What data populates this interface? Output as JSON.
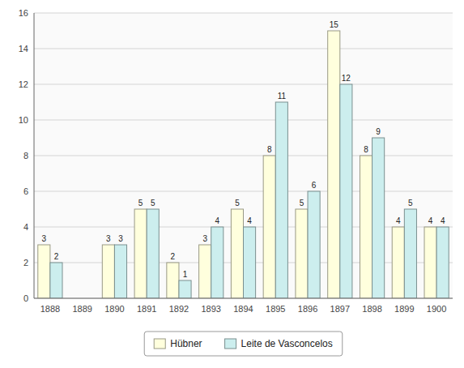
{
  "chart_data": {
    "type": "bar",
    "categories": [
      "1888",
      "1889",
      "1890",
      "1891",
      "1892",
      "1893",
      "1894",
      "1895",
      "1896",
      "1897",
      "1898",
      "1899",
      "1900"
    ],
    "series": [
      {
        "name": "Hübner",
        "color": "#ffffdd",
        "values": [
          3,
          0,
          3,
          5,
          2,
          3,
          5,
          8,
          5,
          15,
          8,
          4,
          4
        ]
      },
      {
        "name": "Leite de Vasconcelos",
        "color": "#cceeee",
        "values": [
          2,
          0,
          3,
          5,
          1,
          4,
          4,
          11,
          6,
          12,
          9,
          5,
          4
        ]
      }
    ],
    "ylim": [
      0,
      16
    ],
    "yticks": [
      0,
      2,
      4,
      6,
      8,
      10,
      12,
      14,
      16
    ],
    "grid": true,
    "legend": "bottom",
    "data_labels": true
  }
}
